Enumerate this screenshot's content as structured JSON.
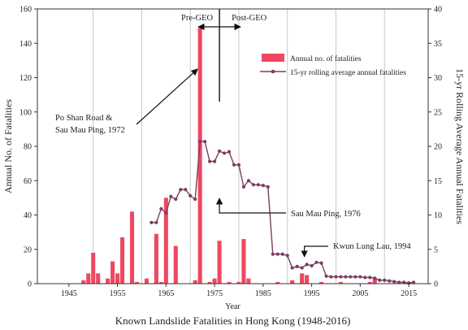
{
  "chart_data": {
    "type": "bar",
    "caption": "Known Landslide Fatalities in Hong Kong (1948-2016)",
    "xlabel": "Year",
    "ylabel_left": "Annual No. of Fatalities",
    "ylabel_right": "15-yr Rolling Average Annual Fatalities",
    "xlim": [
      1938.5,
      2019
    ],
    "ylim_left": [
      0,
      160
    ],
    "ylim_right": [
      0,
      40
    ],
    "x_ticks": [
      1945,
      1955,
      1965,
      1975,
      1985,
      1995,
      2005,
      2015
    ],
    "x_tick_labels": [
      "1945",
      "1955",
      "1965",
      "1975",
      "1985",
      "1995",
      "2005",
      "2015"
    ],
    "x_grid": [
      1950,
      1960,
      1970,
      1980,
      1990,
      2000,
      2010
    ],
    "y_ticks_left": [
      0,
      20,
      40,
      60,
      80,
      100,
      120,
      140,
      160
    ],
    "y_tick_labels_left": [
      "0",
      "20",
      "40",
      "60",
      "80",
      "100",
      "120",
      "140",
      "160"
    ],
    "y_ticks_right": [
      0,
      5,
      10,
      15,
      20,
      25,
      30,
      35,
      40
    ],
    "y_tick_labels_right": [
      "0",
      "5",
      "10",
      "15",
      "20",
      "25",
      "30",
      "35",
      "40"
    ],
    "legend": {
      "position": "top-right",
      "bars": "Annual no. of fatalities",
      "line": "15-yr rolling average annual fatalities"
    },
    "series": [
      {
        "name": "Annual no. of fatalities",
        "kind": "bar",
        "axis": "left",
        "color": "#ee4860",
        "x": [
          1948,
          1949,
          1950,
          1951,
          1952,
          1953,
          1954,
          1955,
          1956,
          1957,
          1958,
          1959,
          1960,
          1961,
          1962,
          1963,
          1964,
          1965,
          1966,
          1967,
          1968,
          1969,
          1970,
          1971,
          1972,
          1973,
          1974,
          1975,
          1976,
          1977,
          1978,
          1979,
          1980,
          1981,
          1982,
          1983,
          1984,
          1985,
          1986,
          1987,
          1988,
          1989,
          1990,
          1991,
          1992,
          1993,
          1994,
          1995,
          1996,
          1997,
          1998,
          1999,
          2000,
          2001,
          2002,
          2003,
          2004,
          2005,
          2006,
          2007,
          2008,
          2009,
          2010,
          2011,
          2012,
          2013,
          2014,
          2015,
          2016
        ],
        "values": [
          2,
          6,
          18,
          6,
          0,
          3,
          13,
          6,
          27,
          0,
          42,
          1,
          0,
          3,
          0,
          29,
          1,
          50,
          0,
          22,
          0,
          0,
          0,
          2,
          149,
          0,
          1,
          3,
          25,
          0,
          1,
          0,
          1,
          26,
          3,
          0,
          0,
          0,
          0,
          0,
          1,
          0,
          0,
          2,
          0,
          6,
          5,
          0,
          0,
          1,
          0,
          0,
          0,
          1,
          0,
          0,
          0,
          0,
          0,
          1,
          3,
          0,
          0,
          0,
          0,
          0,
          0,
          0,
          0
        ]
      },
      {
        "name": "15-yr rolling average annual fatalities",
        "kind": "line",
        "axis": "right",
        "color": "#7d3d62",
        "x": [
          1962,
          1963,
          1964,
          1965,
          1966,
          1967,
          1968,
          1969,
          1970,
          1971,
          1972,
          1973,
          1974,
          1975,
          1976,
          1977,
          1978,
          1979,
          1980,
          1981,
          1982,
          1983,
          1984,
          1985,
          1986,
          1987,
          1988,
          1989,
          1990,
          1991,
          1992,
          1993,
          1994,
          1995,
          1996,
          1997,
          1998,
          1999,
          2000,
          2001,
          2002,
          2003,
          2004,
          2005,
          2006,
          2007,
          2008,
          2009,
          2010,
          2011,
          2012,
          2013,
          2014,
          2015,
          2016
        ],
        "values": [
          8.9,
          8.9,
          10.9,
          10.3,
          12.7,
          12.3,
          13.7,
          13.7,
          12.8,
          12.3,
          20.7,
          20.7,
          17.8,
          17.8,
          19.3,
          19.0,
          19.2,
          17.3,
          17.3,
          14.1,
          15.0,
          14.4,
          14.4,
          14.3,
          14.1,
          4.3,
          4.3,
          4.3,
          4.1,
          2.3,
          2.5,
          2.3,
          2.8,
          2.6,
          3.1,
          3.0,
          1.1,
          1.0,
          1.0,
          1.0,
          1.0,
          1.0,
          1.0,
          1.0,
          0.9,
          0.9,
          0.8,
          0.5,
          0.5,
          0.4,
          0.3,
          0.2,
          0.2,
          0.1,
          0.2
        ]
      }
    ],
    "annotations": [
      {
        "text": "Pre-GEO",
        "kind": "era-label",
        "side": "left",
        "x": 1976
      },
      {
        "text": "Post-GEO",
        "kind": "era-label",
        "side": "right",
        "x": 1976
      },
      {
        "text": "Po Shan Road &",
        "kind": "event-label",
        "line": 1,
        "target_x": 1972,
        "target_y": 125
      },
      {
        "text": "Sau Mau Ping, 1972",
        "kind": "event-label",
        "line": 2,
        "target_x": 1972,
        "target_y": 125
      },
      {
        "text": "Sau Mau Ping, 1976",
        "kind": "event-label",
        "line": 1,
        "target_x": 1976,
        "target_y": 63
      },
      {
        "text": "Kwun Lung Lau, 1994",
        "kind": "event-label",
        "line": 1,
        "target_x": 1993.5,
        "target_y": 28
      }
    ]
  }
}
